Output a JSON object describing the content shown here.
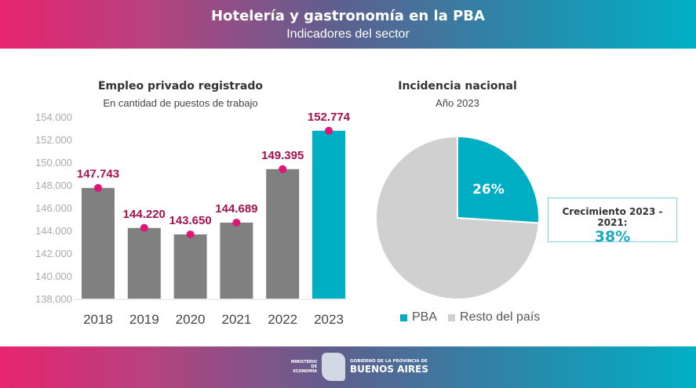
{
  "header": {
    "title": "Hotelería y gastronomía en la PBA",
    "subtitle": "Indicadores del sector"
  },
  "footer": {
    "ministry": "MINISTERIO DE ECONOMÍA",
    "gov_line1": "GOBIERNO DE LA PROVINCIA DE",
    "gov_line2": "BUENOS AIRES"
  },
  "highlight": {
    "label": "Crecimiento 2023 - 2021:",
    "value": "38%"
  },
  "colors": {
    "bar": "#808080",
    "bar_highlight": "#00aec3",
    "marker": "#e0157a",
    "label": "#a3124f",
    "pie_pba": "#00aec3",
    "pie_rest": "#d0d0d0"
  },
  "chart_data": [
    {
      "type": "bar",
      "title": "Empleo privado registrado",
      "subtitle": "En cantidad de puestos de trabajo",
      "categories": [
        "2018",
        "2019",
        "2020",
        "2021",
        "2022",
        "2023"
      ],
      "values": [
        147743,
        144220,
        143650,
        144689,
        149395,
        152774
      ],
      "value_labels": [
        "147.743",
        "144.220",
        "143.650",
        "144.689",
        "149.395",
        "152.774"
      ],
      "ylim": [
        138000,
        154000
      ],
      "yticks": [
        "138.000",
        "140.000",
        "142.000",
        "144.000",
        "146.000",
        "148.000",
        "150.000",
        "152.000",
        "154.000"
      ],
      "grid": false
    },
    {
      "type": "pie",
      "title": "Incidencia nacional",
      "subtitle": "Año 2023",
      "slices": [
        {
          "name": "PBA",
          "value": 26,
          "label": "26%"
        },
        {
          "name": "Resto del país",
          "value": 74
        }
      ],
      "legend": "bottom"
    }
  ]
}
